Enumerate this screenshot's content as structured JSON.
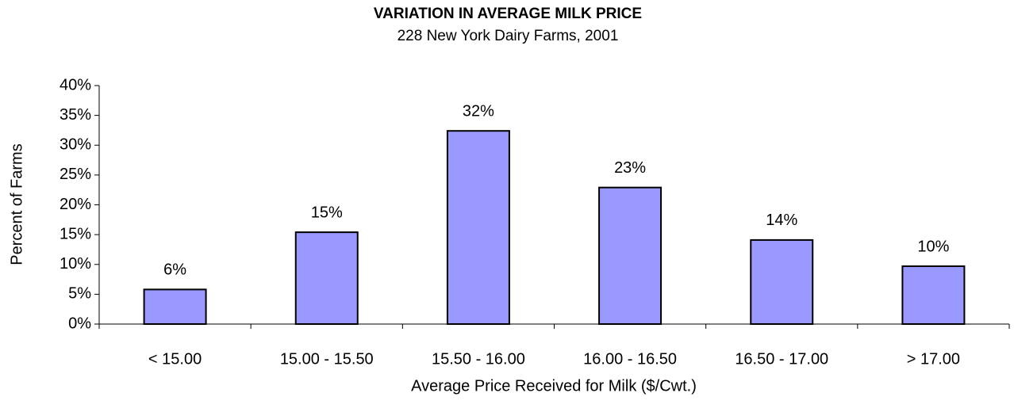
{
  "chart_data": {
    "type": "bar",
    "title": "VARIATION IN AVERAGE MILK PRICE",
    "subtitle": "228 New York Dairy Farms, 2001",
    "x_label": "Average Price Received for Milk ($/Cwt.)",
    "y_label": "Percent of Farms",
    "categories": [
      "< 15.00",
      "15.00 - 15.50",
      "15.50 - 16.00",
      "16.00 - 16.50",
      "16.50 - 17.00",
      "> 17.00"
    ],
    "values": [
      5.8,
      15.4,
      32.4,
      22.9,
      14.1,
      9.7
    ],
    "value_labels": [
      "6%",
      "15%",
      "32%",
      "23%",
      "14%",
      "10%"
    ],
    "color": "#9999ff",
    "ylim": [
      0,
      40
    ],
    "yticks": [
      {
        "value": 0,
        "label": "0%"
      },
      {
        "value": 5,
        "label": "5%"
      },
      {
        "value": 10,
        "label": "10%"
      },
      {
        "value": 15,
        "label": "15%"
      },
      {
        "value": 20,
        "label": "20%"
      },
      {
        "value": 25,
        "label": "25%"
      },
      {
        "value": 30,
        "label": "30%"
      },
      {
        "value": 35,
        "label": "35%"
      },
      {
        "value": 40,
        "label": "40%"
      }
    ],
    "grid": false
  }
}
